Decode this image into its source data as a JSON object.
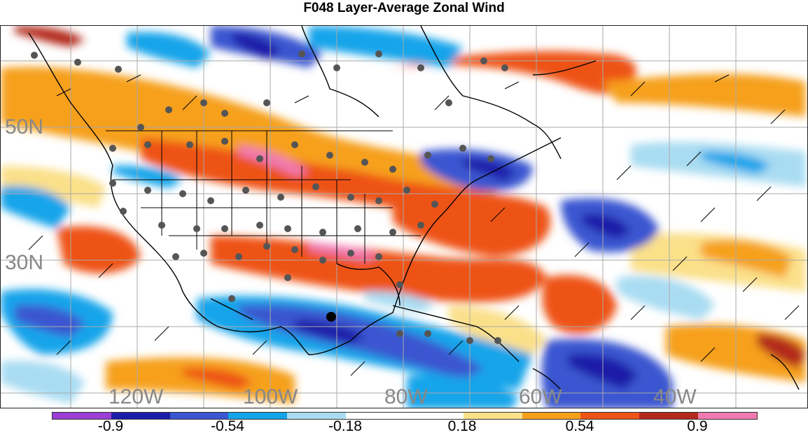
{
  "title": "F048 Layer-Average Zonal Wind",
  "lat_labels": [
    "50N",
    "30N"
  ],
  "lon_labels": [
    "120W",
    "100W",
    "80W",
    "60W",
    "40W"
  ],
  "legend": {
    "colors": [
      "#9b3fd6",
      "#1c1ca8",
      "#3a56d0",
      "#13a4ea",
      "#a9dcf2",
      "#ffffff",
      "#ffffff",
      "#fbe08a",
      "#f6a01a",
      "#ee5316",
      "#b32a1d",
      "#f07ab0"
    ],
    "labels": [
      "-0.9",
      "-0.54",
      "-0.18",
      "0.18",
      "0.54",
      "0.9"
    ]
  }
}
